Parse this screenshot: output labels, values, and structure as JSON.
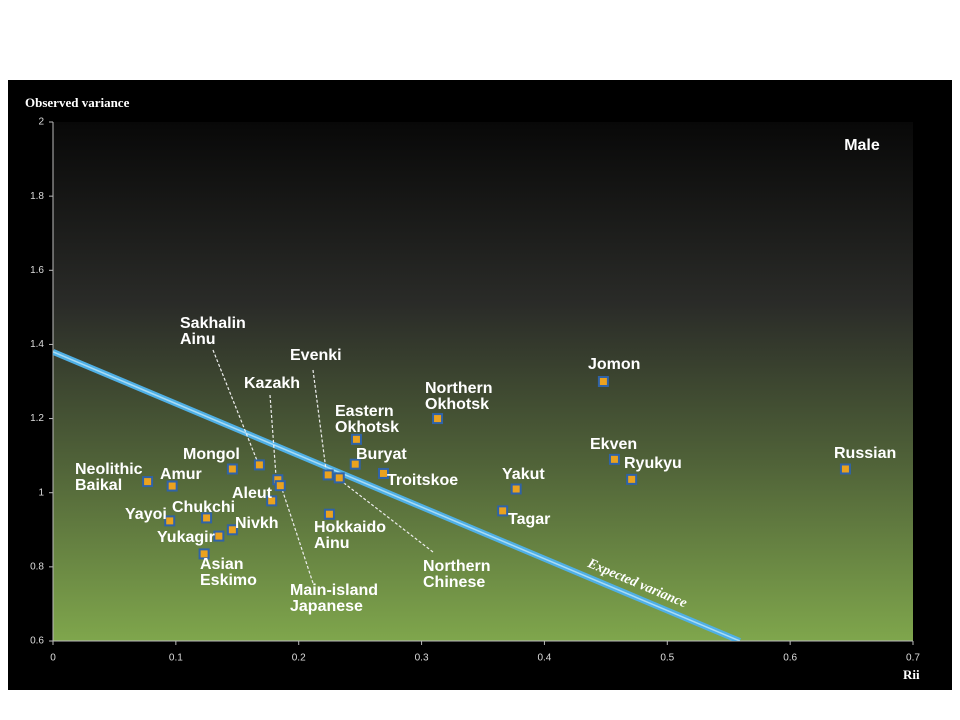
{
  "chart_data": {
    "type": "scatter",
    "annotation": "Male",
    "x_label": "Rii",
    "y_label": "Observed variance",
    "xlim": [
      0,
      0.7
    ],
    "ylim": [
      0.6,
      2
    ],
    "xticks": [
      0,
      0.1,
      0.2,
      0.3,
      0.4,
      0.5,
      0.6,
      0.7
    ],
    "yticks": [
      0.6,
      0.8,
      1,
      1.2,
      1.4,
      1.6,
      1.8,
      2
    ],
    "marker_fill": "#eba21f",
    "marker_edge": "#2f63a8",
    "expected_line": {
      "label": "Expected variance",
      "color": "#4fb0e6",
      "x": [
        0,
        0.559
      ],
      "y": [
        1.38,
        0.6
      ]
    },
    "points": [
      {
        "label": [
          "Neolithic",
          "Baikal"
        ],
        "x": 0.077,
        "y": 1.03
      },
      {
        "label": [
          "Amur"
        ],
        "x": 0.097,
        "y": 1.018
      },
      {
        "label": [
          "Mongol"
        ],
        "x": 0.146,
        "y": 1.064
      },
      {
        "label": [
          "Sakhalin",
          "Ainu"
        ],
        "x": 0.168,
        "y": 1.075
      },
      {
        "label": [
          "Kazakh"
        ],
        "x": 0.183,
        "y": 1.035
      },
      {
        "label": [
          "Aleut"
        ],
        "x": 0.178,
        "y": 0.978
      },
      {
        "label": [
          "Main-island",
          "Japanese"
        ],
        "x": 0.185,
        "y": 1.019
      },
      {
        "label": [
          "Evenki"
        ],
        "x": 0.224,
        "y": 1.048
      },
      {
        "label": [
          "Northern",
          "Chinese"
        ],
        "x": 0.233,
        "y": 1.04
      },
      {
        "label": [
          "Buryat"
        ],
        "x": 0.246,
        "y": 1.077
      },
      {
        "label": [
          "Eastern",
          "Okhotsk"
        ],
        "x": 0.247,
        "y": 1.144
      },
      {
        "label": [
          "Troitskoe"
        ],
        "x": 0.269,
        "y": 1.052
      },
      {
        "label": [
          "Hokkaido",
          "Ainu"
        ],
        "x": 0.225,
        "y": 0.942
      },
      {
        "label": [
          "Northern",
          "Okhotsk"
        ],
        "x": 0.313,
        "y": 1.2
      },
      {
        "label": [
          "Jomon"
        ],
        "x": 0.448,
        "y": 1.3
      },
      {
        "label": [
          "Ekven"
        ],
        "x": 0.457,
        "y": 1.09
      },
      {
        "label": [
          "Ryukyu"
        ],
        "x": 0.471,
        "y": 1.036
      },
      {
        "label": [
          "Yakut"
        ],
        "x": 0.377,
        "y": 1.01
      },
      {
        "label": [
          "Tagar"
        ],
        "x": 0.366,
        "y": 0.951
      },
      {
        "label": [
          "Russian"
        ],
        "x": 0.645,
        "y": 1.064
      },
      {
        "label": [
          "Yayoi"
        ],
        "x": 0.095,
        "y": 0.924
      },
      {
        "label": [
          "Chukchi"
        ],
        "x": 0.125,
        "y": 0.932
      },
      {
        "label": [
          "Nivkh"
        ],
        "x": 0.146,
        "y": 0.9
      },
      {
        "label": [
          "Yukagir"
        ],
        "x": 0.135,
        "y": 0.883
      },
      {
        "label": [
          "Asian",
          "Eskimo"
        ],
        "x": 0.123,
        "y": 0.835
      }
    ]
  }
}
